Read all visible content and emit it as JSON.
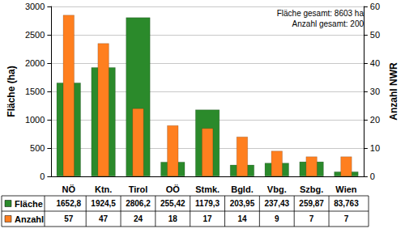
{
  "chart_data": {
    "type": "bar",
    "categories": [
      "NÖ",
      "Ktn.",
      "Tirol",
      "OÖ",
      "Stmk.",
      "Bgld.",
      "Vbg.",
      "Szbg.",
      "Wien"
    ],
    "series": [
      {
        "name": "Fläche",
        "color": "#2b8a2b",
        "values": [
          1652.8,
          1924.5,
          2806.2,
          255.42,
          1179.3,
          203.95,
          237.43,
          259.87,
          83.763
        ],
        "value_labels": [
          "1652,8",
          "1924,5",
          "2806,2",
          "255,42",
          "1179,3",
          "203,95",
          "237,43",
          "259,87",
          "83,763"
        ]
      },
      {
        "name": "Anzahl",
        "color": "#ff7f1f",
        "axis": "y2",
        "values": [
          57,
          47,
          24,
          18,
          17,
          14,
          9,
          7,
          7
        ]
      }
    ],
    "y_label": "Fläche (ha)",
    "y2_label": "Anzahl NWR",
    "ylim": [
      0,
      3000
    ],
    "yticks": [
      0,
      500,
      1000,
      1500,
      2000,
      2500,
      3000
    ],
    "y2lim": [
      0,
      60
    ],
    "y2ticks": [
      0,
      10,
      20,
      30,
      40,
      50,
      60
    ],
    "grid": true,
    "annotations": [
      "Fläche gesamt: 8603 ha",
      "Anzahl gesamt: 200"
    ]
  }
}
